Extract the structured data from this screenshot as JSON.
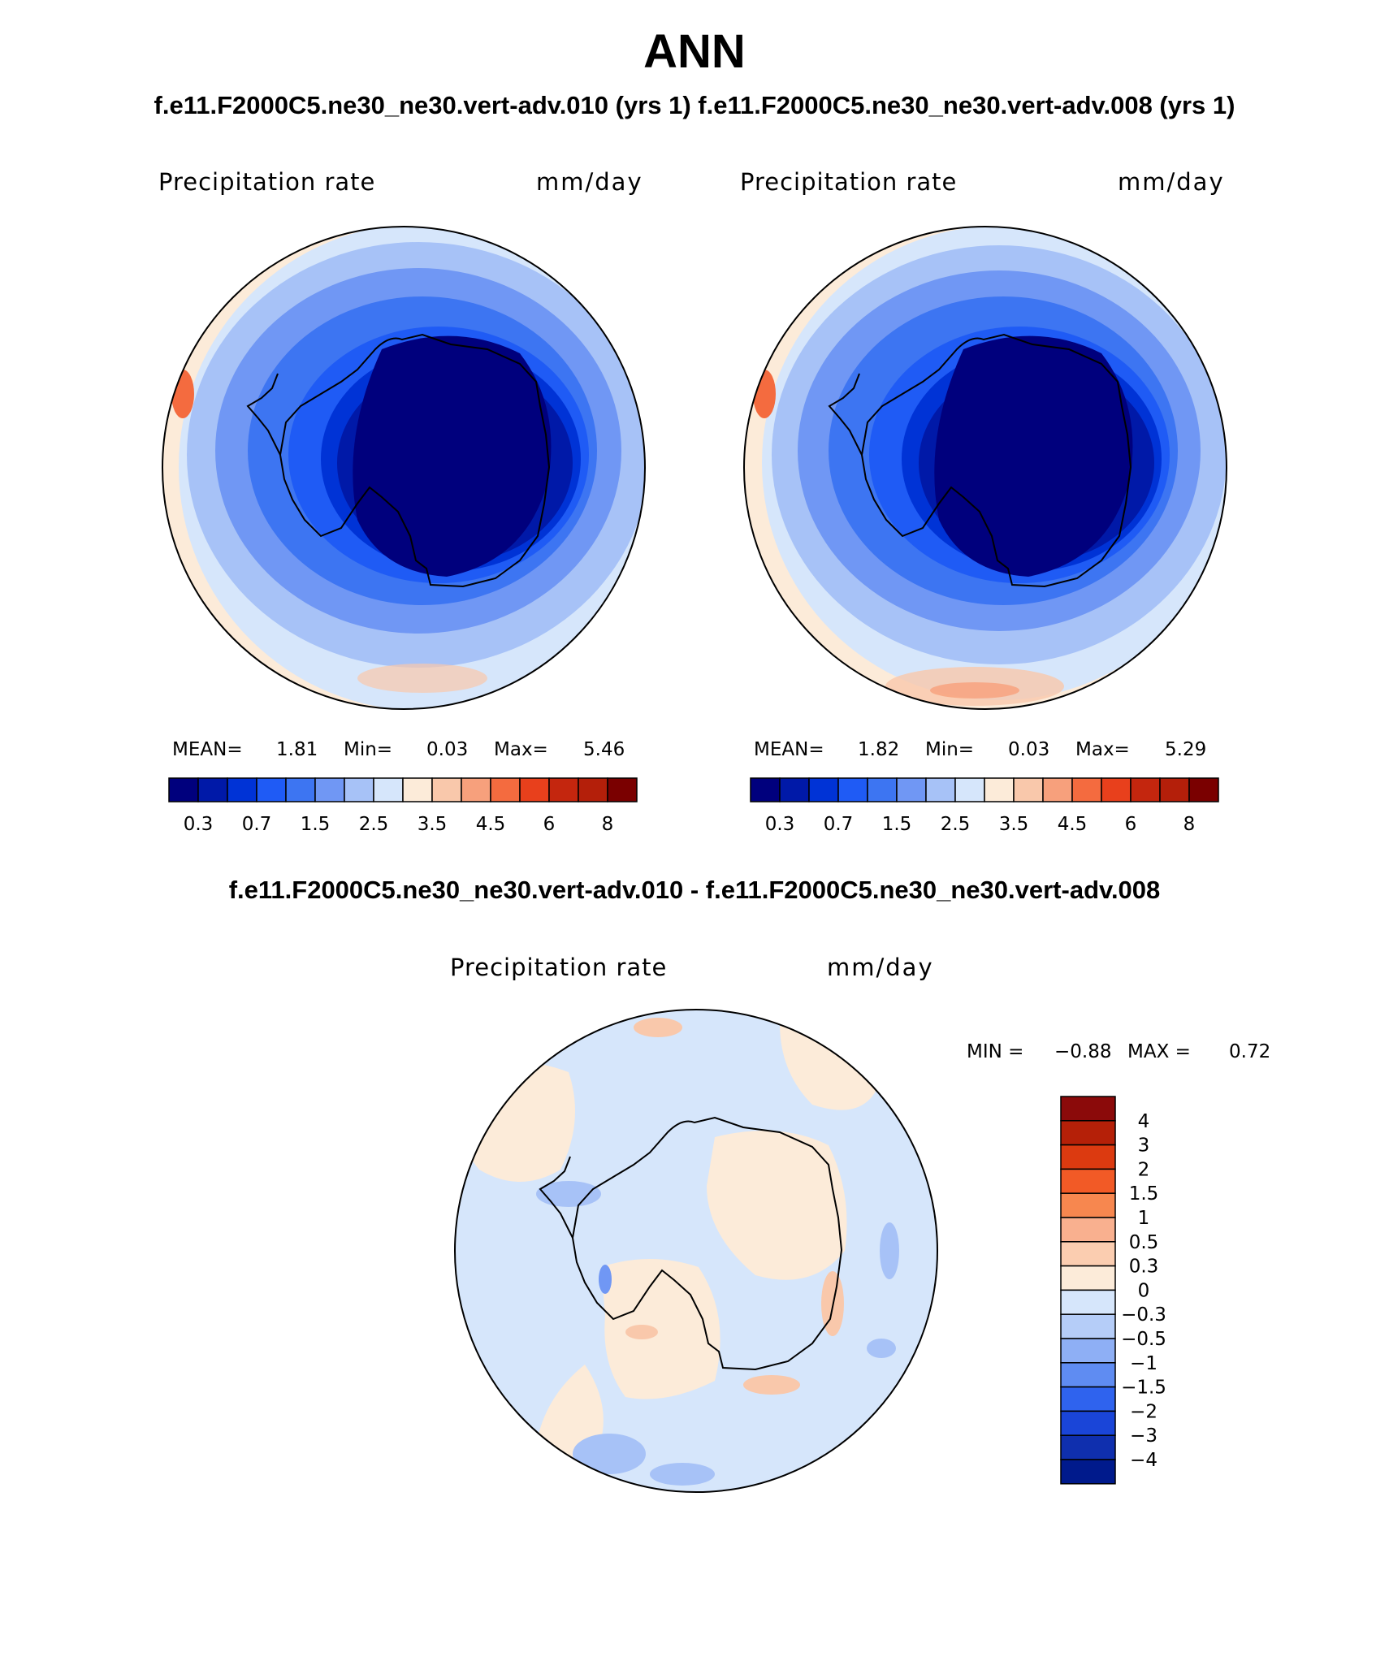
{
  "title": "ANN",
  "subtitle": "f.e11.F2000C5.ne30_ne30.vert-adv.010 (yrs 1) f.e11.F2000C5.ne30_ne30.vert-adv.008 (yrs 1)",
  "diff_title": "f.e11.F2000C5.ne30_ne30.vert-adv.010 - f.e11.F2000C5.ne30_ne30.vert-adv.008",
  "chart_data": [
    {
      "type": "heatmap",
      "projection": "south-polar-stereographic",
      "variable": "Precipitation rate",
      "units": "mm/day",
      "stats": {
        "mean_label": "MEAN=",
        "mean": "1.81",
        "min_label": "Min=",
        "min": "0.03",
        "max_label": "Max=",
        "max": "5.46"
      },
      "levels": [
        "0.3",
        "0.7",
        "1.5",
        "2.5",
        "3.5",
        "4.5",
        "6",
        "8"
      ],
      "colors": [
        "#00007d",
        "#0019a8",
        "#0033d6",
        "#1f5bf5",
        "#3d75f2",
        "#7097f4",
        "#a7c2f7",
        "#d6e6fb",
        "#fcebd9",
        "#f9c8ab",
        "#f7a07c",
        "#f46b3f",
        "#e8401c",
        "#c4260e",
        "#b41f0a",
        "#7a0000"
      ]
    },
    {
      "type": "heatmap",
      "projection": "south-polar-stereographic",
      "variable": "Precipitation rate",
      "units": "mm/day",
      "stats": {
        "mean_label": "MEAN=",
        "mean": "1.82",
        "min_label": "Min=",
        "min": "0.03",
        "max_label": "Max=",
        "max": "5.29"
      },
      "levels": [
        "0.3",
        "0.7",
        "1.5",
        "2.5",
        "3.5",
        "4.5",
        "6",
        "8"
      ],
      "colors": [
        "#00007d",
        "#0019a8",
        "#0033d6",
        "#1f5bf5",
        "#3d75f2",
        "#7097f4",
        "#a7c2f7",
        "#d6e6fb",
        "#fcebd9",
        "#f9c8ab",
        "#f7a07c",
        "#f46b3f",
        "#e8401c",
        "#c4260e",
        "#b41f0a",
        "#7a0000"
      ]
    },
    {
      "type": "heatmap",
      "projection": "south-polar-stereographic",
      "variable": "Precipitation rate",
      "units": "mm/day",
      "stats": {
        "min_label": "MIN =",
        "min": "−0.88",
        "max_label": "MAX =",
        "max": "0.72"
      },
      "levels": [
        "4",
        "3",
        "2",
        "1.5",
        "1",
        "0.5",
        "0.3",
        "0",
        "−0.3",
        "−0.5",
        "−1",
        "−1.5",
        "−2",
        "−3",
        "−4"
      ],
      "colors": [
        "#8b0a0a",
        "#b52008",
        "#dc3a10",
        "#f25a26",
        "#f7874f",
        "#f9b08f",
        "#fbcdb0",
        "#fcebd9",
        "#d6e6fb",
        "#b5cdf8",
        "#8eaff5",
        "#5f8cf2",
        "#2f63ee",
        "#1a45d8",
        "#0f2fae",
        "#001a8c"
      ]
    }
  ]
}
